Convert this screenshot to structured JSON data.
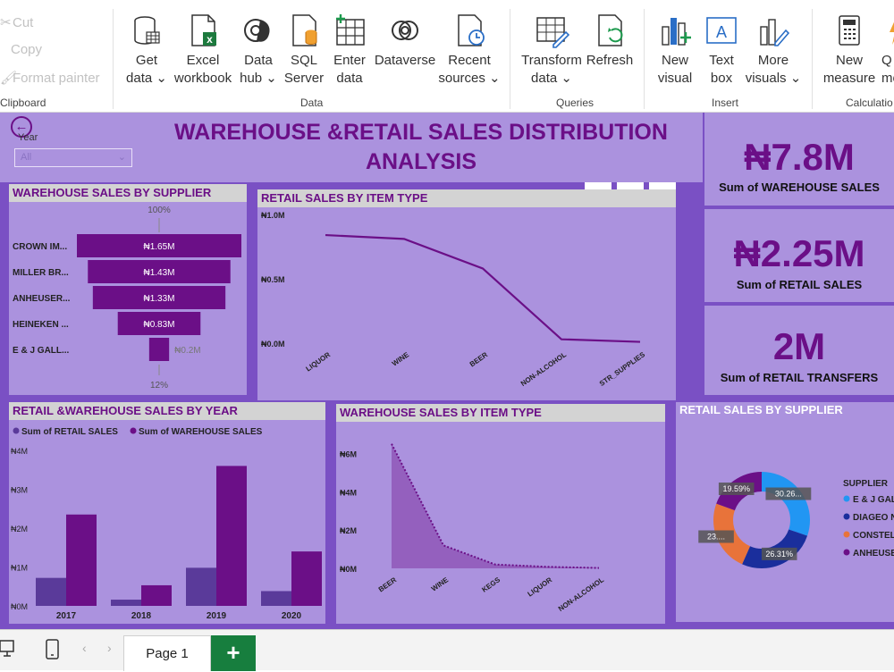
{
  "ribbon": {
    "clipboard": {
      "cut": "Cut",
      "copy": "Copy",
      "format_painter": "Format painter",
      "group": "Clipboard"
    },
    "data_group": "Data",
    "queries_group": "Queries",
    "insert_group": "Insert",
    "calc_group": "Calculatio",
    "buttons": {
      "get_data": [
        "Get",
        "data ⌄"
      ],
      "excel": [
        "Excel",
        "workbook"
      ],
      "data_hub": [
        "Data",
        "hub ⌄"
      ],
      "sql": [
        "SQL",
        "Server"
      ],
      "enter_data": [
        "Enter",
        "data"
      ],
      "dataverse": [
        "Dataverse",
        ""
      ],
      "recent": [
        "Recent",
        "sources ⌄"
      ],
      "transform": [
        "Transform",
        "data ⌄"
      ],
      "refresh": [
        "Refresh",
        ""
      ],
      "new_visual": [
        "New",
        "visual"
      ],
      "text_box": [
        "Text",
        "box"
      ],
      "more_visuals": [
        "More",
        "visuals ⌄"
      ],
      "new_measure": [
        "New",
        "measure"
      ],
      "quick_measure": [
        "Q",
        "me"
      ]
    }
  },
  "report": {
    "title_line1": "WAREHOUSE &RETAIL SALES DISTRIBUTION",
    "title_line2": "ANALYSIS",
    "slicer": {
      "label": "Year",
      "value": "All"
    },
    "kpis": [
      {
        "value": "₦7.8M",
        "label": "Sum of WAREHOUSE SALES"
      },
      {
        "value": "₦2.25M",
        "label": "Sum of RETAIL SALES"
      },
      {
        "value": "2M",
        "label": "Sum of RETAIL TRANSFERS"
      }
    ],
    "colors": {
      "purple_dark": "#6b0f87",
      "purple_mid": "#5a3a9a",
      "panel": "#ab92de",
      "background": "#7a50c4"
    }
  },
  "charts": {
    "funnel": {
      "title": "WAREHOUSE SALES BY SUPPLIER",
      "top_label": "100%",
      "bottom_label": "12%",
      "categories": [
        "CROWN IM...",
        "MILLER BR...",
        "ANHEUSER...",
        "HEINEKEN ...",
        "E & J GALL..."
      ],
      "labels": [
        "₦1.65M",
        "₦1.43M",
        "₦1.33M",
        "₦0.83M",
        "₦0.2M"
      ]
    },
    "retail_type": {
      "title": "RETAIL SALES BY ITEM TYPE",
      "yticks": [
        "₦1.0M",
        "₦0.5M",
        "₦0.0M"
      ],
      "categories": [
        "LIQUOR",
        "WINE",
        "BEER",
        "NON-ALCOHOL",
        "STR_SUPPLIES"
      ]
    },
    "by_year": {
      "title": "RETAIL &WAREHOUSE SALES BY YEAR",
      "legend": [
        "Sum of RETAIL SALES",
        "Sum of WAREHOUSE SALES"
      ],
      "yticks": [
        "₦4M",
        "₦3M",
        "₦2M",
        "₦1M",
        "₦0M"
      ],
      "categories": [
        "2017",
        "2018",
        "2019",
        "2020"
      ]
    },
    "wh_type": {
      "title": "WAREHOUSE SALES BY ITEM TYPE",
      "yticks": [
        "₦6M",
        "₦4M",
        "₦2M",
        "₦0M"
      ],
      "categories": [
        "BEER",
        "WINE",
        "KEGS",
        "LIQUOR",
        "NON-ALCOHOL"
      ]
    },
    "donut": {
      "title": "RETAIL SALES BY SUPPLIER",
      "legend_title": "SUPPLIER",
      "legend": [
        "E & J GAL",
        "DIAGEO N",
        "CONSTEL",
        "ANHEUSE"
      ],
      "labels": [
        "30.26...",
        "26.31%",
        "23....",
        "19.59%"
      ],
      "colors": [
        "#2196f3",
        "#1a2e9c",
        "#e8733a",
        "#6b0f87"
      ]
    }
  },
  "bottom": {
    "page_tab": "Page 1",
    "add_page": "+"
  },
  "chart_data": [
    {
      "type": "bar",
      "title": "WAREHOUSE SALES BY SUPPLIER",
      "categories": [
        "CROWN IM...",
        "MILLER BR...",
        "ANHEUSER...",
        "HEINEKEN ...",
        "E & J GALL..."
      ],
      "values": [
        1.65,
        1.43,
        1.33,
        0.83,
        0.2
      ]
    },
    {
      "type": "line",
      "title": "RETAIL SALES BY ITEM TYPE",
      "categories": [
        "LIQUOR",
        "WINE",
        "BEER",
        "NON-ALCOHOL",
        "STR_SUPPLIES"
      ],
      "values": [
        0.84,
        0.81,
        0.58,
        0.03,
        0.01
      ],
      "ylim": [
        0,
        1.0
      ]
    },
    {
      "type": "bar",
      "title": "RETAIL &WAREHOUSE SALES BY YEAR",
      "categories": [
        "2017",
        "2018",
        "2019",
        "2020"
      ],
      "series": [
        {
          "name": "Sum of RETAIL SALES",
          "values": [
            0.72,
            0.16,
            0.98,
            0.38
          ]
        },
        {
          "name": "Sum of WAREHOUSE SALES",
          "values": [
            2.35,
            0.53,
            3.6,
            1.4
          ]
        }
      ],
      "ylim": [
        0,
        4
      ]
    },
    {
      "type": "area",
      "title": "WAREHOUSE SALES BY ITEM TYPE",
      "categories": [
        "BEER",
        "WINE",
        "KEGS",
        "LIQUOR",
        "NON-ALCOHOL"
      ],
      "values": [
        6.5,
        1.2,
        0.2,
        0.08,
        0.02
      ],
      "ylim": [
        0,
        7
      ]
    },
    {
      "type": "pie",
      "title": "RETAIL SALES BY SUPPLIER",
      "categories": [
        "E & J GAL",
        "DIAGEO N",
        "CONSTEL",
        "ANHEUSE"
      ],
      "values": [
        30.26,
        26.31,
        23.84,
        19.59
      ]
    }
  ]
}
